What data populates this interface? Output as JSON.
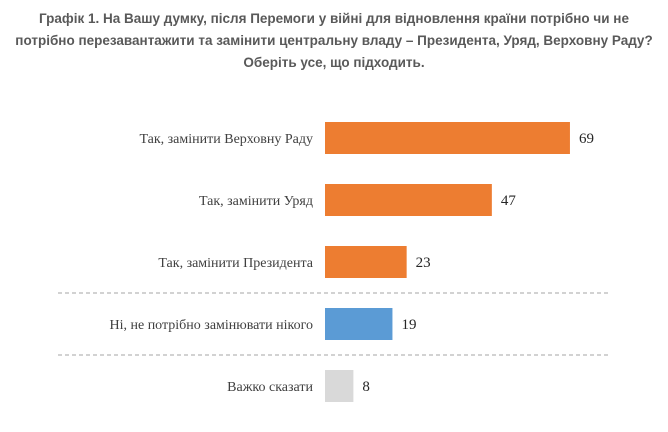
{
  "chart_data": {
    "type": "bar",
    "orientation": "horizontal",
    "title": "Графік 1. На Вашу думку, після Перемоги у війні для відновлення країни потрібно чи не потрібно перезавантажити та замінити центральну владу – Президента, Уряд, Верховну Раду? Оберіть усе, що підходить.",
    "categories": [
      "Так, замінити Верховну Раду",
      "Так, замінити Уряд",
      "Так, замінити Президента",
      "Ні, не потрібно замінювати нікого",
      "Важко сказати"
    ],
    "values": [
      69,
      47,
      23,
      19,
      8
    ],
    "colors": [
      "#ED7D31",
      "#ED7D31",
      "#ED7D31",
      "#5B9BD5",
      "#D9D9D9"
    ],
    "xlim": [
      0,
      100
    ],
    "grid": false,
    "legend": "none",
    "separators_after": [
      2,
      3
    ],
    "xlabel": "",
    "ylabel": ""
  }
}
